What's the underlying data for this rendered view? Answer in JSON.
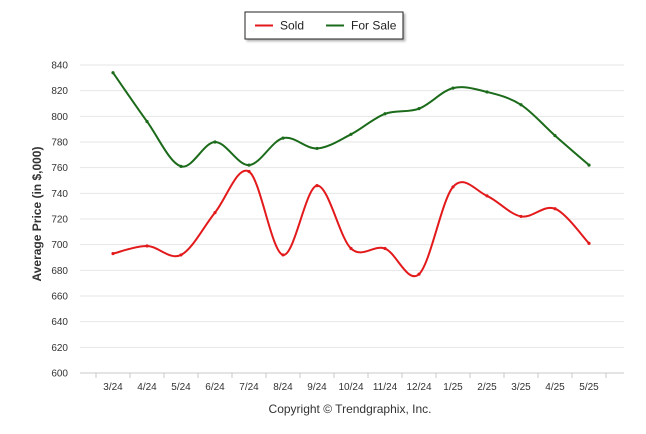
{
  "chart_data": {
    "type": "line",
    "categories": [
      "3/24",
      "4/24",
      "5/24",
      "6/24",
      "7/24",
      "8/24",
      "9/24",
      "10/24",
      "11/24",
      "12/24",
      "1/25",
      "2/25",
      "3/25",
      "4/25",
      "5/25"
    ],
    "series": [
      {
        "name": "Sold",
        "color": "#e31a1c",
        "values": [
          693,
          699,
          692,
          725,
          757,
          692,
          746,
          697,
          697,
          677,
          745,
          738,
          722,
          728,
          701
        ]
      },
      {
        "name": "For Sale",
        "color": "#1b6b1b",
        "values": [
          834,
          796,
          761,
          780,
          762,
          783,
          775,
          786,
          802,
          806,
          822,
          819,
          809,
          785,
          762
        ]
      }
    ],
    "ylabel": "Average Price (in $,000)",
    "xlabel": "",
    "ylim": [
      600,
      840
    ],
    "yticks": [
      600,
      620,
      640,
      660,
      680,
      700,
      720,
      740,
      760,
      780,
      800,
      820,
      840
    ],
    "grid": true,
    "legend_position": "top-center"
  },
  "credit": "Copyright © Trendgraphix, Inc."
}
